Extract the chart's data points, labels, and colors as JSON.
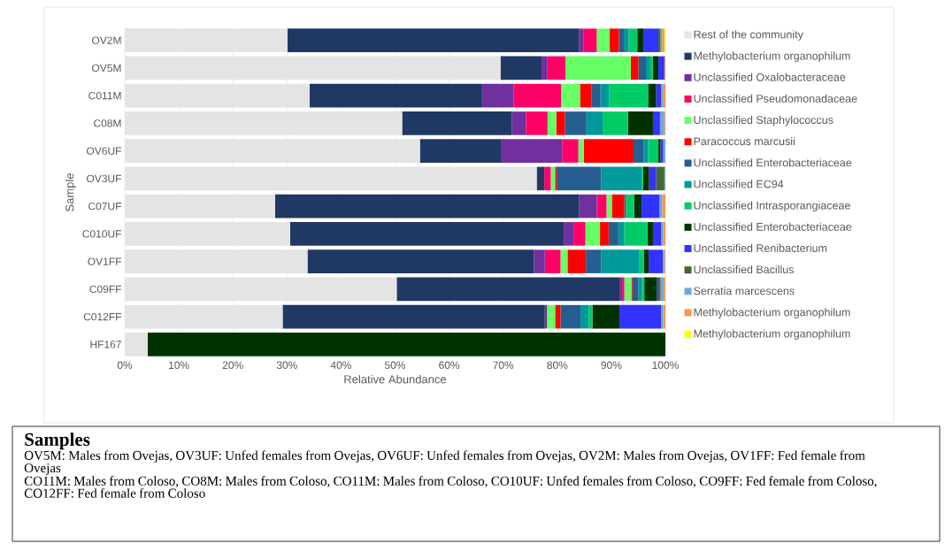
{
  "chart_data": {
    "type": "bar",
    "orientation": "horizontal",
    "stacked": true,
    "xlabel": "Relative Abundance",
    "ylabel": "Sample",
    "categories": [
      "OV2M",
      "OV5M",
      "C011M",
      "C08M",
      "OV6UF",
      "OV3UF",
      "C07UF",
      "C010UF",
      "OV1FF",
      "C09FF",
      "C012FF",
      "HF167"
    ],
    "xlim": [
      0,
      100
    ],
    "xticks": [
      {
        "value": 0,
        "label": "0%"
      },
      {
        "value": 10,
        "label": "10%"
      },
      {
        "value": 20,
        "label": "20%"
      },
      {
        "value": 30,
        "label": "30%"
      },
      {
        "value": 40,
        "label": "40%"
      },
      {
        "value": 50,
        "label": "50%"
      },
      {
        "value": 60,
        "label": "60%"
      },
      {
        "value": 70,
        "label": "70%"
      },
      {
        "value": 80,
        "label": "80%"
      },
      {
        "value": 90,
        "label": "90%"
      },
      {
        "value": 100,
        "label": "100%"
      }
    ],
    "grid": "x",
    "legend": "right",
    "series": [
      {
        "name": "Rest of the community",
        "color": "#e4e4e4",
        "values": [
          30.1,
          69.5,
          34.2,
          51.3,
          54.6,
          76.2,
          27.8,
          30.6,
          33.8,
          50.3,
          29.2,
          4.2
        ]
      },
      {
        "name": "Methylobacterium organophilum",
        "color": "#203864",
        "values": [
          53.9,
          7.6,
          31.9,
          20.3,
          15.1,
          1.4,
          56.2,
          50.6,
          41.9,
          41.2,
          48.5,
          0
        ]
      },
      {
        "name": "Unclassified Oxalobacteraceae",
        "color": "#7030a0",
        "values": [
          0.9,
          1.1,
          5.8,
          2.6,
          11.2,
          0,
          3.3,
          1.8,
          2.0,
          0.5,
          0.4,
          0
        ]
      },
      {
        "name": "Unclassified Pseudomonadaceae",
        "color": "#ff0066",
        "values": [
          2.4,
          3.3,
          8.8,
          4.0,
          3.0,
          1.2,
          1.8,
          2.2,
          2.9,
          0.4,
          0,
          0
        ]
      },
      {
        "name": "Unclassified Staphylococcus",
        "color": "#66ff66",
        "values": [
          2.4,
          12.1,
          3.5,
          1.6,
          1.0,
          0.8,
          1.0,
          2.7,
          1.3,
          1.3,
          1.5,
          0
        ]
      },
      {
        "name": "Paracoccus marcusii",
        "color": "#ff0000",
        "values": [
          1.7,
          1.4,
          2.1,
          1.6,
          9.2,
          0.3,
          2.3,
          1.6,
          3.4,
          0.2,
          1.0,
          0
        ]
      },
      {
        "name": "Unclassified Enterobacteriaceae",
        "color": "#255e91",
        "values": [
          0.9,
          1.4,
          1.7,
          4.0,
          1.9,
          8.2,
          0.3,
          1.8,
          2.8,
          1.1,
          3.7,
          0
        ]
      },
      {
        "name": "Unclassified EC94",
        "color": "#009999",
        "values": [
          0.9,
          0.8,
          1.6,
          3.1,
          0.8,
          7.5,
          0,
          1.1,
          7.0,
          0.7,
          1.5,
          0
        ]
      },
      {
        "name": "Unclassified Intrasporangiaceae",
        "color": "#00cc66",
        "values": [
          1.6,
          0.5,
          7.2,
          4.6,
          1.9,
          0.3,
          1.5,
          4.3,
          0.9,
          0.4,
          0.7,
          0
        ]
      },
      {
        "name": "Unclassified Enterobacteriaceae",
        "color": "#003300",
        "values": [
          1.1,
          1.0,
          1.5,
          4.6,
          0.4,
          1.1,
          1.4,
          1.0,
          0.9,
          2.3,
          5.0,
          95.8
        ]
      },
      {
        "name": "Unclassified Renibacterium",
        "color": "#3333ff",
        "values": [
          2.8,
          1.1,
          0.9,
          1.3,
          0.5,
          1.3,
          3.3,
          1.5,
          2.6,
          0.3,
          7.7,
          0
        ]
      },
      {
        "name": "Unclassified Bacillus",
        "color": "#43682b",
        "values": [
          0.4,
          0,
          0,
          0,
          0,
          1.5,
          0,
          0,
          0,
          0.4,
          0,
          0
        ]
      },
      {
        "name": "Serratia marcescens",
        "color": "#6fa8dc",
        "values": [
          0.3,
          0,
          0.3,
          0.8,
          0.4,
          0.2,
          0.5,
          0.4,
          0.3,
          0.6,
          0.4,
          0
        ]
      },
      {
        "name": "Methylobacterium organophilum",
        "color": "#f79646",
        "values": [
          0.4,
          0.2,
          0.5,
          0.2,
          0,
          0,
          0.6,
          0.4,
          0.2,
          0.3,
          0.4,
          0
        ]
      },
      {
        "name": "Methylobacterium organophilum",
        "color": "#ffff00",
        "values": [
          0.2,
          0,
          0,
          0,
          0,
          0,
          0,
          0,
          0,
          0,
          0,
          0
        ]
      }
    ],
    "annotations": [
      "Samples",
      "OV5M: Males from Ovejas, OV3UF: Unfed females from Ovejas, OV6UF: Unfed females from Ovejas, OV2M: Males from Ovejas, OV1FF: Fed female from Ovejas",
      "CO11M: Males from Coloso, CO8M: Males from Coloso, CO11M: Males from Coloso, CO10UF: Unfed females from Coloso, CO9FF: Fed female from Coloso, CO12FF: Fed female from Coloso"
    ]
  }
}
